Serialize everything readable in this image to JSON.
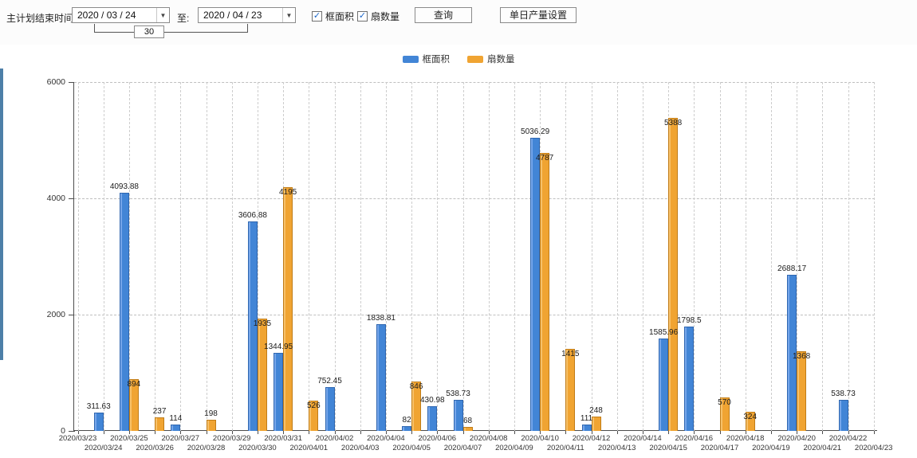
{
  "toolbar": {
    "label_plan_end": "主计划结束时间:",
    "date_from": "2020 / 03 / 24",
    "to_label": "至:",
    "date_to": "2020 / 04 / 23",
    "days_value": "30",
    "checkbox_frame_label": "框面积",
    "checkbox_fan_label": "扇数量",
    "query_button": "查询",
    "daily_output_button": "单日产量设置"
  },
  "legend": [
    {
      "label": "框面积",
      "color": "#4285d6"
    },
    {
      "label": "扇数量",
      "color": "#f0a432"
    }
  ],
  "colors": {
    "blue_series": "#4285d6",
    "orange_series": "#f0a432",
    "axis": "#4d4d4d"
  },
  "chart_data": {
    "type": "bar",
    "title": "",
    "xlabel": "",
    "ylabel": "",
    "ylim": [
      0,
      6000
    ],
    "yticks": [
      0,
      2000,
      4000,
      6000
    ],
    "grid": true,
    "legend_position": "top",
    "categories": [
      "2020/03/23",
      "2020/03/24",
      "2020/03/25",
      "2020/03/26",
      "2020/03/27",
      "2020/03/28",
      "2020/03/29",
      "2020/03/30",
      "2020/03/31",
      "2020/04/01",
      "2020/04/02",
      "2020/04/03",
      "2020/04/04",
      "2020/04/05",
      "2020/04/06",
      "2020/04/07",
      "2020/04/08",
      "2020/04/09",
      "2020/04/10",
      "2020/04/11",
      "2020/04/12",
      "2020/04/13",
      "2020/04/14",
      "2020/04/15",
      "2020/04/16",
      "2020/04/17",
      "2020/04/18",
      "2020/04/19",
      "2020/04/20",
      "2020/04/21",
      "2020/04/22",
      "2020/04/23"
    ],
    "series": [
      {
        "name": "框面积",
        "color": "#4285d6",
        "values": [
          null,
          311.63,
          4093.88,
          null,
          114,
          null,
          null,
          3606.88,
          1344.95,
          null,
          752.45,
          null,
          1838.81,
          82,
          430.98,
          538.73,
          null,
          null,
          5036.29,
          null,
          111,
          null,
          null,
          1585.96,
          1798.5,
          null,
          null,
          null,
          2688.17,
          null,
          538.73,
          null
        ]
      },
      {
        "name": "扇数量",
        "color": "#f0a432",
        "values": [
          null,
          null,
          894,
          237,
          null,
          198,
          null,
          1935,
          4195,
          526,
          null,
          null,
          null,
          846,
          null,
          68,
          null,
          null,
          4787,
          1415,
          248,
          null,
          null,
          5388,
          null,
          570,
          324,
          null,
          1368,
          null,
          null,
          null
        ]
      }
    ]
  }
}
